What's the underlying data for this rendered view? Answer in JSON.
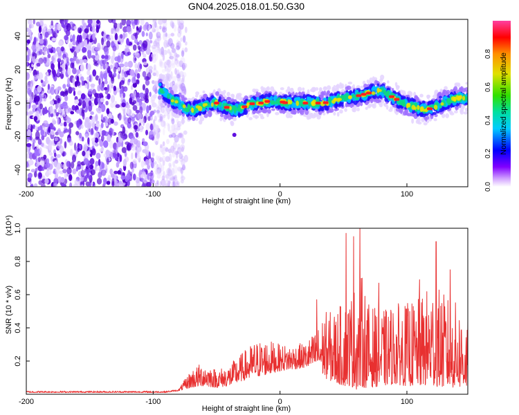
{
  "title": "GN04.2025.018.01.50.G30",
  "chart_data": [
    {
      "type": "heatmap",
      "xlabel": "Height of straight line (km)",
      "ylabel": "Frequency (Hz)",
      "xlim": [
        -200,
        148
      ],
      "ylim": [
        -50,
        50
      ],
      "xticks": [
        -200,
        -100,
        0,
        100
      ],
      "yticks": [
        -40,
        -20,
        0,
        20,
        40
      ],
      "colorbar": {
        "label": "Normalized spectral amplitude",
        "range": [
          0,
          1
        ],
        "ticks": [
          0.0,
          0.2,
          0.4,
          0.6,
          0.8
        ],
        "colormap": [
          "#ffffff",
          "#c080ff",
          "#6000e0",
          "#0000ff",
          "#00c8ff",
          "#00e080",
          "#40e000",
          "#e0e000",
          "#ff9000",
          "#ff0000",
          "#ff40a0"
        ]
      },
      "noise_region_x": [
        -200,
        -80
      ],
      "ridge": {
        "x": [
          -95,
          -90,
          -85,
          -80,
          -75,
          -70,
          -65,
          -60,
          -55,
          -50,
          -45,
          -40,
          -35,
          -30,
          -25,
          -20,
          -15,
          -10,
          -5,
          0,
          5,
          10,
          15,
          20,
          25,
          30,
          35,
          40,
          45,
          50,
          55,
          60,
          65,
          70,
          75,
          80,
          85,
          90,
          95,
          100,
          105,
          110,
          115,
          120,
          125,
          130,
          135,
          140,
          148
        ],
        "freq": [
          9,
          5,
          2,
          0,
          -3,
          -4,
          -3,
          -2,
          -1,
          0,
          -2,
          -3,
          -4,
          -3,
          -1,
          0,
          0,
          1,
          1,
          1,
          0,
          0,
          0,
          0,
          0,
          0,
          0,
          1,
          2,
          3,
          4,
          4,
          5,
          6,
          7,
          7,
          5,
          3,
          1,
          -1,
          -2,
          -3,
          -4,
          -3,
          -1,
          1,
          2,
          3,
          3
        ]
      }
    },
    {
      "type": "line",
      "xlabel": "Height of straight line (km)",
      "ylabel": "SNR (10 * v/v)",
      "ymultiplier": "(x10⁴)",
      "xlim": [
        -200,
        148
      ],
      "ylim": [
        0,
        1.0
      ],
      "xticks": [
        -200,
        -100,
        0,
        100
      ],
      "yticks": [
        0.2,
        0.4,
        0.6,
        0.8,
        1.0
      ],
      "color": "#e83030",
      "envelope": {
        "x": [
          -200,
          -120,
          -90,
          -80,
          -70,
          -60,
          -50,
          -40,
          -30,
          -20,
          -10,
          0,
          10,
          20,
          30,
          35,
          40,
          50,
          55,
          60,
          65,
          70,
          80,
          90,
          100,
          110,
          120,
          130,
          140,
          148
        ],
        "low": [
          0.01,
          0.01,
          0.01,
          0.02,
          0.04,
          0.05,
          0.04,
          0.05,
          0.08,
          0.1,
          0.12,
          0.14,
          0.15,
          0.16,
          0.17,
          0.1,
          0.08,
          0.05,
          0.05,
          0.03,
          0.04,
          0.04,
          0.05,
          0.06,
          0.05,
          0.05,
          0.05,
          0.04,
          0.04,
          0.04
        ],
        "high": [
          0.02,
          0.02,
          0.02,
          0.03,
          0.15,
          0.2,
          0.15,
          0.18,
          0.25,
          0.32,
          0.33,
          0.3,
          0.3,
          0.31,
          0.4,
          0.5,
          0.5,
          0.55,
          0.6,
          0.68,
          0.72,
          0.55,
          0.5,
          0.55,
          0.55,
          0.58,
          0.68,
          0.6,
          0.55,
          0.45
        ]
      },
      "peaks": [
        {
          "x": 29,
          "y": 0.57
        },
        {
          "x": 52,
          "y": 0.97
        },
        {
          "x": 58,
          "y": 0.95
        },
        {
          "x": 63,
          "y": 1.0
        },
        {
          "x": 78,
          "y": 0.67
        },
        {
          "x": 110,
          "y": 0.69
        },
        {
          "x": 123,
          "y": 0.92
        },
        {
          "x": 134,
          "y": 0.75
        }
      ]
    }
  ]
}
